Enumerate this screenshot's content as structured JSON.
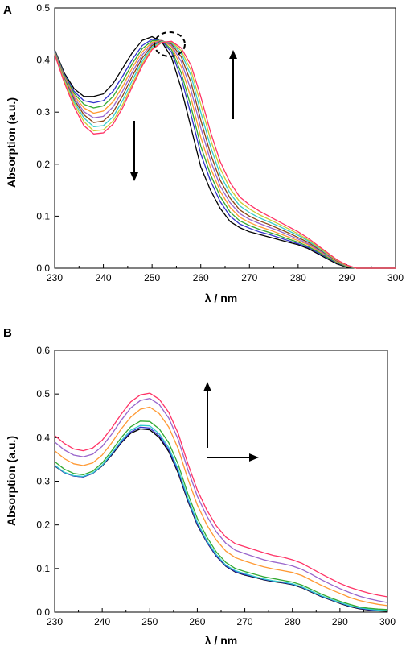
{
  "chart_data": [
    {
      "type": "line",
      "panel_label": "A",
      "xlabel": "λ / nm",
      "ylabel": "Absorption (a.u.)",
      "xlim": [
        230,
        300
      ],
      "ylim": [
        0.0,
        0.5
      ],
      "xticks": [
        "230",
        "240",
        "250",
        "260",
        "270",
        "280",
        "290",
        "300"
      ],
      "yticks": [
        "0.0",
        "0.1",
        "0.2",
        "0.3",
        "0.4",
        "0.5"
      ],
      "x": [
        230,
        232,
        234,
        236,
        238,
        240,
        242,
        244,
        246,
        248,
        250,
        252,
        254,
        256,
        258,
        260,
        262,
        264,
        266,
        268,
        270,
        272,
        274,
        276,
        278,
        280,
        282,
        284,
        286,
        288,
        290,
        292,
        294,
        296,
        298,
        300
      ],
      "series": [
        {
          "color": "#000000",
          "values": [
            0.42,
            0.375,
            0.345,
            0.33,
            0.33,
            0.335,
            0.355,
            0.385,
            0.415,
            0.438,
            0.445,
            0.435,
            0.405,
            0.345,
            0.27,
            0.195,
            0.15,
            0.115,
            0.09,
            0.078,
            0.07,
            0.065,
            0.06,
            0.055,
            0.05,
            0.045,
            0.038,
            0.028,
            0.018,
            0.008,
            0.002,
            0.0,
            0.0,
            0.0,
            0.0,
            0.0
          ]
        },
        {
          "color": "#3333cc",
          "values": [
            0.418,
            0.372,
            0.34,
            0.322,
            0.318,
            0.322,
            0.34,
            0.37,
            0.402,
            0.428,
            0.44,
            0.437,
            0.415,
            0.365,
            0.295,
            0.22,
            0.168,
            0.128,
            0.1,
            0.085,
            0.077,
            0.07,
            0.065,
            0.059,
            0.053,
            0.047,
            0.04,
            0.03,
            0.02,
            0.01,
            0.003,
            0.0,
            0.0,
            0.0,
            0.0,
            0.0
          ]
        },
        {
          "color": "#33aa33",
          "values": [
            0.417,
            0.37,
            0.336,
            0.315,
            0.308,
            0.312,
            0.33,
            0.36,
            0.394,
            0.422,
            0.437,
            0.438,
            0.42,
            0.375,
            0.31,
            0.235,
            0.18,
            0.138,
            0.108,
            0.091,
            0.082,
            0.075,
            0.069,
            0.063,
            0.056,
            0.05,
            0.042,
            0.032,
            0.021,
            0.011,
            0.003,
            0.0,
            0.0,
            0.0,
            0.0,
            0.0
          ]
        },
        {
          "color": "#ff9933",
          "values": [
            0.416,
            0.368,
            0.332,
            0.308,
            0.298,
            0.302,
            0.32,
            0.35,
            0.386,
            0.416,
            0.434,
            0.438,
            0.425,
            0.387,
            0.327,
            0.252,
            0.193,
            0.148,
            0.117,
            0.098,
            0.088,
            0.08,
            0.074,
            0.067,
            0.06,
            0.053,
            0.045,
            0.034,
            0.023,
            0.012,
            0.004,
            0.0,
            0.0,
            0.0,
            0.0,
            0.0
          ]
        },
        {
          "color": "#9966cc",
          "values": [
            0.415,
            0.366,
            0.328,
            0.301,
            0.289,
            0.292,
            0.31,
            0.341,
            0.378,
            0.41,
            0.431,
            0.438,
            0.428,
            0.397,
            0.342,
            0.27,
            0.207,
            0.158,
            0.126,
            0.105,
            0.094,
            0.086,
            0.079,
            0.072,
            0.064,
            0.056,
            0.047,
            0.036,
            0.024,
            0.013,
            0.004,
            0.0,
            0.0,
            0.0,
            0.0,
            0.0
          ]
        },
        {
          "color": "#8b4513",
          "values": [
            0.414,
            0.364,
            0.324,
            0.295,
            0.28,
            0.283,
            0.3,
            0.332,
            0.37,
            0.404,
            0.428,
            0.437,
            0.431,
            0.406,
            0.357,
            0.285,
            0.22,
            0.169,
            0.135,
            0.112,
            0.1,
            0.091,
            0.084,
            0.076,
            0.068,
            0.059,
            0.05,
            0.038,
            0.026,
            0.014,
            0.005,
            0.0,
            0.0,
            0.0,
            0.0,
            0.0
          ]
        },
        {
          "color": "#33cccc",
          "values": [
            0.413,
            0.362,
            0.32,
            0.289,
            0.272,
            0.274,
            0.291,
            0.323,
            0.362,
            0.398,
            0.425,
            0.436,
            0.433,
            0.413,
            0.37,
            0.3,
            0.234,
            0.18,
            0.144,
            0.12,
            0.107,
            0.097,
            0.089,
            0.081,
            0.072,
            0.063,
            0.053,
            0.04,
            0.027,
            0.015,
            0.005,
            0.0,
            0.0,
            0.0,
            0.0,
            0.0
          ]
        },
        {
          "color": "#cccc33",
          "values": [
            0.412,
            0.36,
            0.316,
            0.282,
            0.264,
            0.266,
            0.283,
            0.315,
            0.355,
            0.393,
            0.422,
            0.435,
            0.435,
            0.418,
            0.38,
            0.315,
            0.248,
            0.192,
            0.153,
            0.128,
            0.114,
            0.103,
            0.094,
            0.085,
            0.076,
            0.066,
            0.055,
            0.042,
            0.028,
            0.015,
            0.005,
            0.0,
            0.0,
            0.0,
            0.0,
            0.0
          ]
        },
        {
          "color": "#ff3366",
          "values": [
            0.411,
            0.356,
            0.31,
            0.274,
            0.258,
            0.26,
            0.277,
            0.309,
            0.35,
            0.389,
            0.42,
            0.434,
            0.436,
            0.423,
            0.39,
            0.33,
            0.262,
            0.205,
            0.165,
            0.137,
            0.122,
            0.11,
            0.1,
            0.09,
            0.08,
            0.07,
            0.058,
            0.044,
            0.03,
            0.016,
            0.006,
            0.0,
            0.0,
            0.0,
            0.0,
            0.0
          ]
        }
      ]
    },
    {
      "type": "line",
      "panel_label": "B",
      "xlabel": "λ / nm",
      "ylabel": "Absorption (a.u.)",
      "xlim": [
        230,
        300
      ],
      "ylim": [
        0.0,
        0.6
      ],
      "xticks": [
        "230",
        "240",
        "250",
        "260",
        "270",
        "280",
        "290",
        "300"
      ],
      "yticks": [
        "0.0",
        "0.1",
        "0.2",
        "0.3",
        "0.4",
        "0.5",
        "0.6"
      ],
      "x": [
        230,
        232,
        234,
        236,
        238,
        240,
        242,
        244,
        246,
        248,
        250,
        252,
        254,
        256,
        258,
        260,
        262,
        264,
        266,
        268,
        270,
        272,
        274,
        276,
        278,
        280,
        282,
        284,
        286,
        288,
        290,
        292,
        294,
        296,
        298,
        300
      ],
      "series": [
        {
          "color": "#000000",
          "values": [
            0.335,
            0.32,
            0.312,
            0.31,
            0.318,
            0.335,
            0.36,
            0.388,
            0.41,
            0.42,
            0.418,
            0.4,
            0.368,
            0.318,
            0.255,
            0.2,
            0.16,
            0.128,
            0.105,
            0.092,
            0.085,
            0.08,
            0.074,
            0.07,
            0.067,
            0.063,
            0.056,
            0.046,
            0.036,
            0.028,
            0.02,
            0.013,
            0.008,
            0.005,
            0.003,
            0.002
          ]
        },
        {
          "color": "#3333cc",
          "values": [
            0.336,
            0.32,
            0.312,
            0.31,
            0.318,
            0.336,
            0.362,
            0.39,
            0.413,
            0.424,
            0.422,
            0.404,
            0.372,
            0.322,
            0.258,
            0.202,
            0.161,
            0.129,
            0.106,
            0.093,
            0.086,
            0.081,
            0.075,
            0.071,
            0.068,
            0.064,
            0.057,
            0.047,
            0.037,
            0.029,
            0.021,
            0.014,
            0.009,
            0.006,
            0.004,
            0.003
          ]
        },
        {
          "color": "#33cccc",
          "values": [
            0.337,
            0.321,
            0.313,
            0.311,
            0.319,
            0.337,
            0.364,
            0.393,
            0.417,
            0.428,
            0.427,
            0.409,
            0.377,
            0.327,
            0.262,
            0.206,
            0.164,
            0.132,
            0.108,
            0.095,
            0.088,
            0.082,
            0.076,
            0.072,
            0.069,
            0.065,
            0.058,
            0.048,
            0.038,
            0.03,
            0.022,
            0.015,
            0.01,
            0.007,
            0.005,
            0.004
          ]
        },
        {
          "color": "#33aa33",
          "values": [
            0.345,
            0.328,
            0.318,
            0.315,
            0.323,
            0.342,
            0.37,
            0.4,
            0.425,
            0.438,
            0.437,
            0.42,
            0.388,
            0.338,
            0.272,
            0.215,
            0.172,
            0.138,
            0.114,
            0.1,
            0.093,
            0.087,
            0.081,
            0.077,
            0.073,
            0.069,
            0.062,
            0.052,
            0.042,
            0.033,
            0.025,
            0.018,
            0.012,
            0.009,
            0.007,
            0.006
          ]
        },
        {
          "color": "#ff9933",
          "values": [
            0.37,
            0.352,
            0.34,
            0.336,
            0.342,
            0.36,
            0.388,
            0.42,
            0.447,
            0.465,
            0.47,
            0.455,
            0.424,
            0.374,
            0.306,
            0.246,
            0.2,
            0.165,
            0.14,
            0.125,
            0.117,
            0.11,
            0.104,
            0.099,
            0.095,
            0.091,
            0.084,
            0.073,
            0.062,
            0.052,
            0.043,
            0.034,
            0.027,
            0.022,
            0.018,
            0.015
          ]
        },
        {
          "color": "#9966cc",
          "values": [
            0.39,
            0.372,
            0.36,
            0.356,
            0.362,
            0.38,
            0.408,
            0.44,
            0.468,
            0.485,
            0.49,
            0.476,
            0.445,
            0.395,
            0.327,
            0.266,
            0.22,
            0.184,
            0.158,
            0.142,
            0.134,
            0.127,
            0.12,
            0.115,
            0.111,
            0.106,
            0.098,
            0.087,
            0.075,
            0.064,
            0.054,
            0.045,
            0.037,
            0.031,
            0.026,
            0.022
          ]
        },
        {
          "color": "#ff3366",
          "values": [
            0.405,
            0.387,
            0.374,
            0.37,
            0.376,
            0.394,
            0.422,
            0.454,
            0.482,
            0.498,
            0.502,
            0.488,
            0.458,
            0.409,
            0.341,
            0.28,
            0.234,
            0.198,
            0.172,
            0.157,
            0.15,
            0.143,
            0.136,
            0.13,
            0.126,
            0.12,
            0.112,
            0.1,
            0.088,
            0.077,
            0.066,
            0.057,
            0.05,
            0.044,
            0.039,
            0.035
          ]
        }
      ]
    }
  ]
}
